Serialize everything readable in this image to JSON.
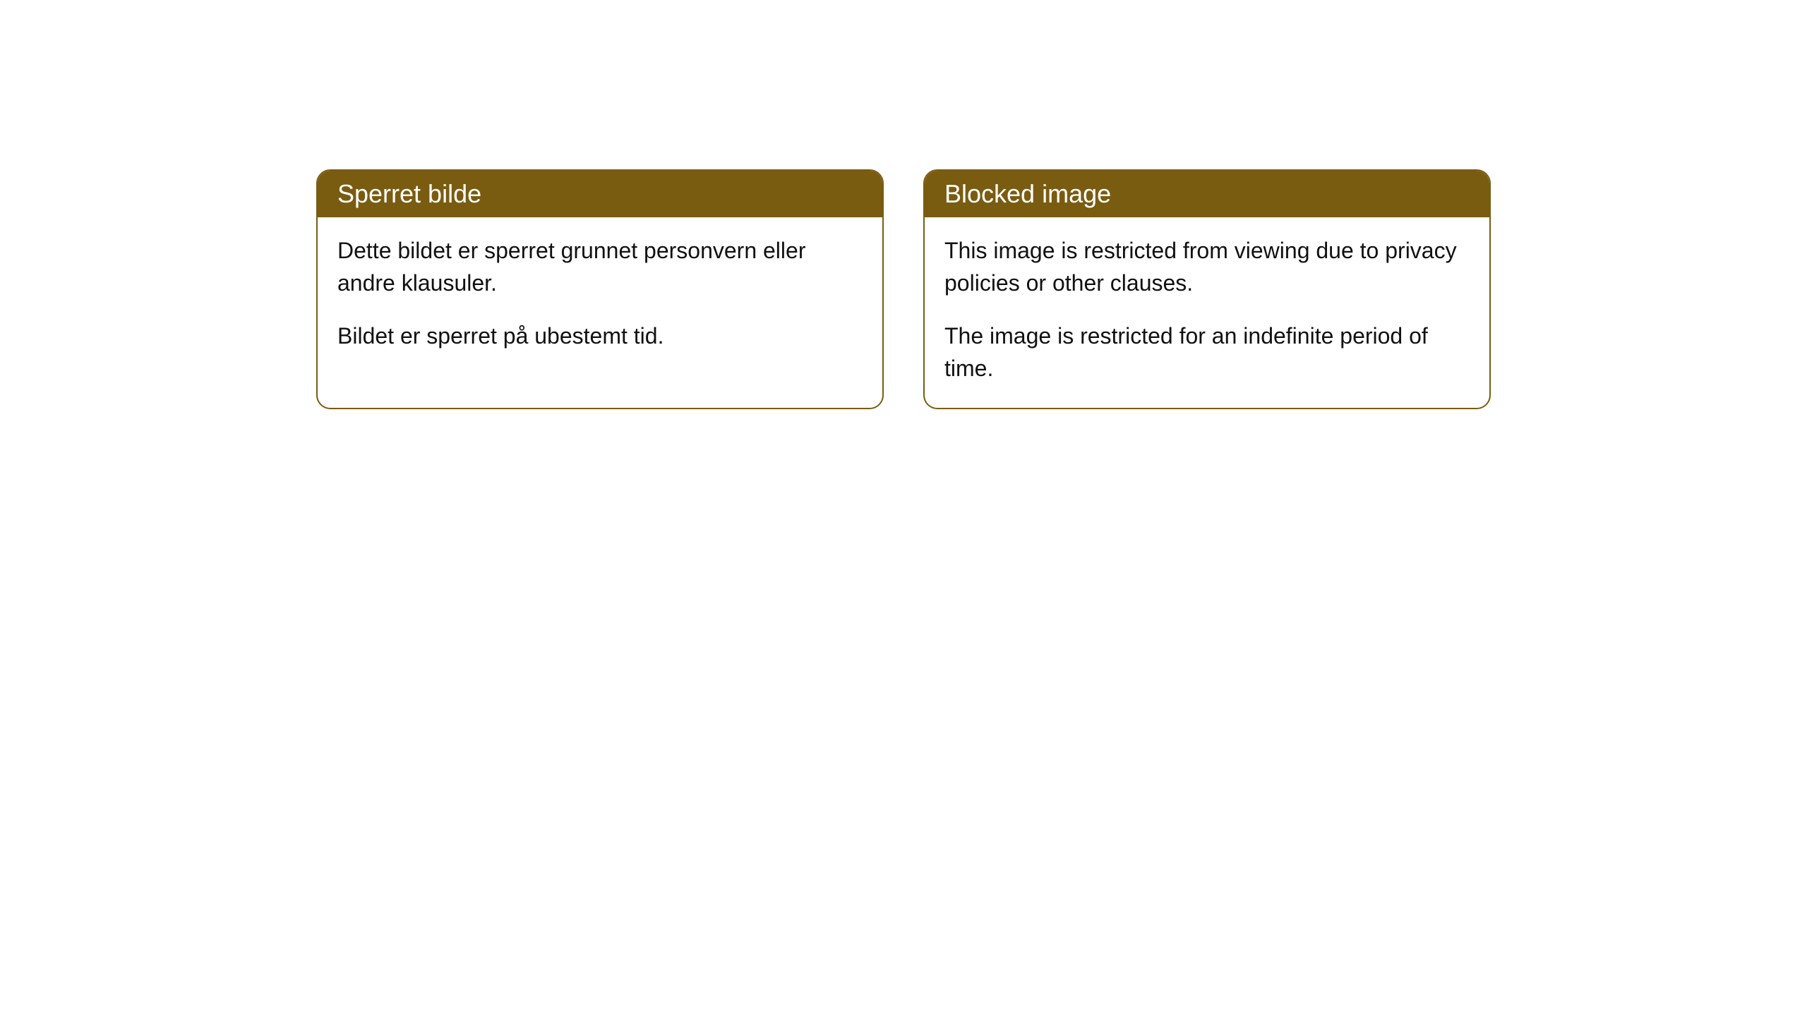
{
  "styling": {
    "header_background": "#7a5c11",
    "header_text_color": "#ffffff",
    "card_border_color": "#7a5c11",
    "card_background": "#ffffff",
    "body_text_color": "#111111",
    "header_fontsize": 36,
    "body_fontsize": 32,
    "border_radius": 20
  },
  "cards": {
    "left": {
      "title": "Sperret bilde",
      "paragraph1": "Dette bildet er sperret grunnet personvern eller andre klausuler.",
      "paragraph2": "Bildet er sperret på ubestemt tid."
    },
    "right": {
      "title": "Blocked image",
      "paragraph1": "This image is restricted from viewing due to privacy policies or other clauses.",
      "paragraph2": "The image is restricted for an indefinite period of time."
    }
  }
}
